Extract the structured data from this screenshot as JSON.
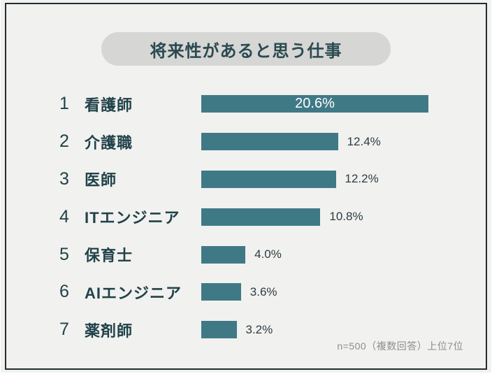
{
  "title": "将来性があると思う仕事",
  "footer_note": "n=500（複数回答）上位7位",
  "colors": {
    "background": "#f1f1ef",
    "frame_border": "#222e34",
    "title_pill_bg": "#d6d6d5",
    "title_text": "#2a4a50",
    "bar": "#407986",
    "row_text": "#21424a",
    "value_text_outside": "#2d3c42",
    "value_text_inside": "#ffffff",
    "footer_text": "#8d8d8d"
  },
  "chart_data": {
    "type": "bar",
    "orientation": "horizontal",
    "title": "将来性があると思う仕事",
    "ranks": [
      1,
      2,
      3,
      4,
      5,
      6,
      7
    ],
    "categories": [
      "看護師",
      "介護職",
      "医師",
      "ITエンジニア",
      "保育士",
      "AIエンジニア",
      "薬剤師"
    ],
    "values": [
      20.6,
      12.4,
      12.2,
      10.8,
      4.0,
      3.6,
      3.2
    ],
    "value_labels": [
      "20.6%",
      "12.4%",
      "12.2%",
      "10.8%",
      "4.0%",
      "3.6%",
      "3.2%"
    ],
    "value_label_position": [
      "inside",
      "outside",
      "outside",
      "outside",
      "outside",
      "outside",
      "outside"
    ],
    "xlim": [
      0,
      20.6
    ],
    "grid": false,
    "legend": false,
    "note": "n=500（複数回答）上位7位"
  }
}
